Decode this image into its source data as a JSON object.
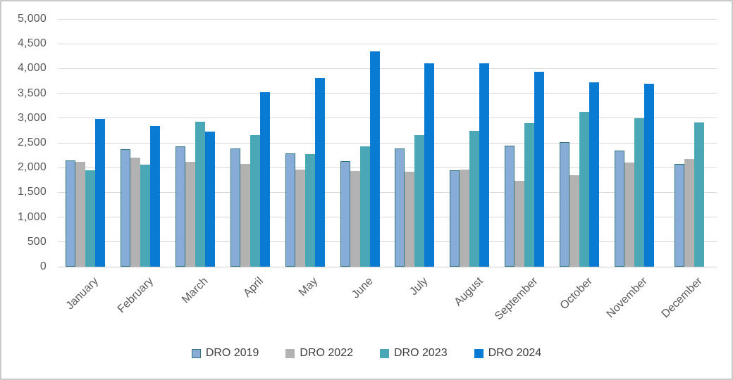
{
  "chart_data": {
    "type": "bar",
    "title": "",
    "xlabel": "",
    "ylabel": "",
    "categories": [
      "January",
      "February",
      "March",
      "April",
      "May",
      "June",
      "July",
      "August",
      "September",
      "October",
      "November",
      "December"
    ],
    "series": [
      {
        "name": "DRO 2019",
        "color": "#87acd7",
        "border_color": "#31747b",
        "values": [
          2140,
          2370,
          2430,
          2390,
          2290,
          2130,
          2390,
          1950,
          2440,
          2510,
          2350,
          2080
        ]
      },
      {
        "name": "DRO 2022",
        "color": "#b2b2b2",
        "border_color": null,
        "values": [
          2110,
          2200,
          2110,
          2080,
          1960,
          1930,
          1920,
          1960,
          1740,
          1840,
          2100,
          2170
        ]
      },
      {
        "name": "DRO 2023",
        "color": "#4aa7b5",
        "border_color": null,
        "values": [
          1940,
          2060,
          2920,
          2660,
          2280,
          2430,
          2660,
          2740,
          2900,
          3130,
          3000,
          2910
        ]
      },
      {
        "name": "DRO 2024",
        "color": "#0a7bd2",
        "border_color": null,
        "values": [
          2980,
          2840,
          2730,
          3520,
          3800,
          4340,
          4110,
          4100,
          3940,
          3720,
          3690,
          null
        ]
      }
    ],
    "ylim": [
      0,
      5000
    ],
    "ytick_step": 500,
    "ytick_labels": [
      "5,000",
      "4,500",
      "4,000",
      "3,500",
      "3,000",
      "2,500",
      "2,000",
      "1,500",
      "1,000",
      "500",
      "0"
    ],
    "grid": "horizontal",
    "gridline_color": "#d9d9d9",
    "legend_position": "bottom",
    "axis_text_color": "#595959",
    "legend_text_color": "#404040",
    "background_color": "#ffffff",
    "outer_border_color": "#c9c9c9"
  }
}
